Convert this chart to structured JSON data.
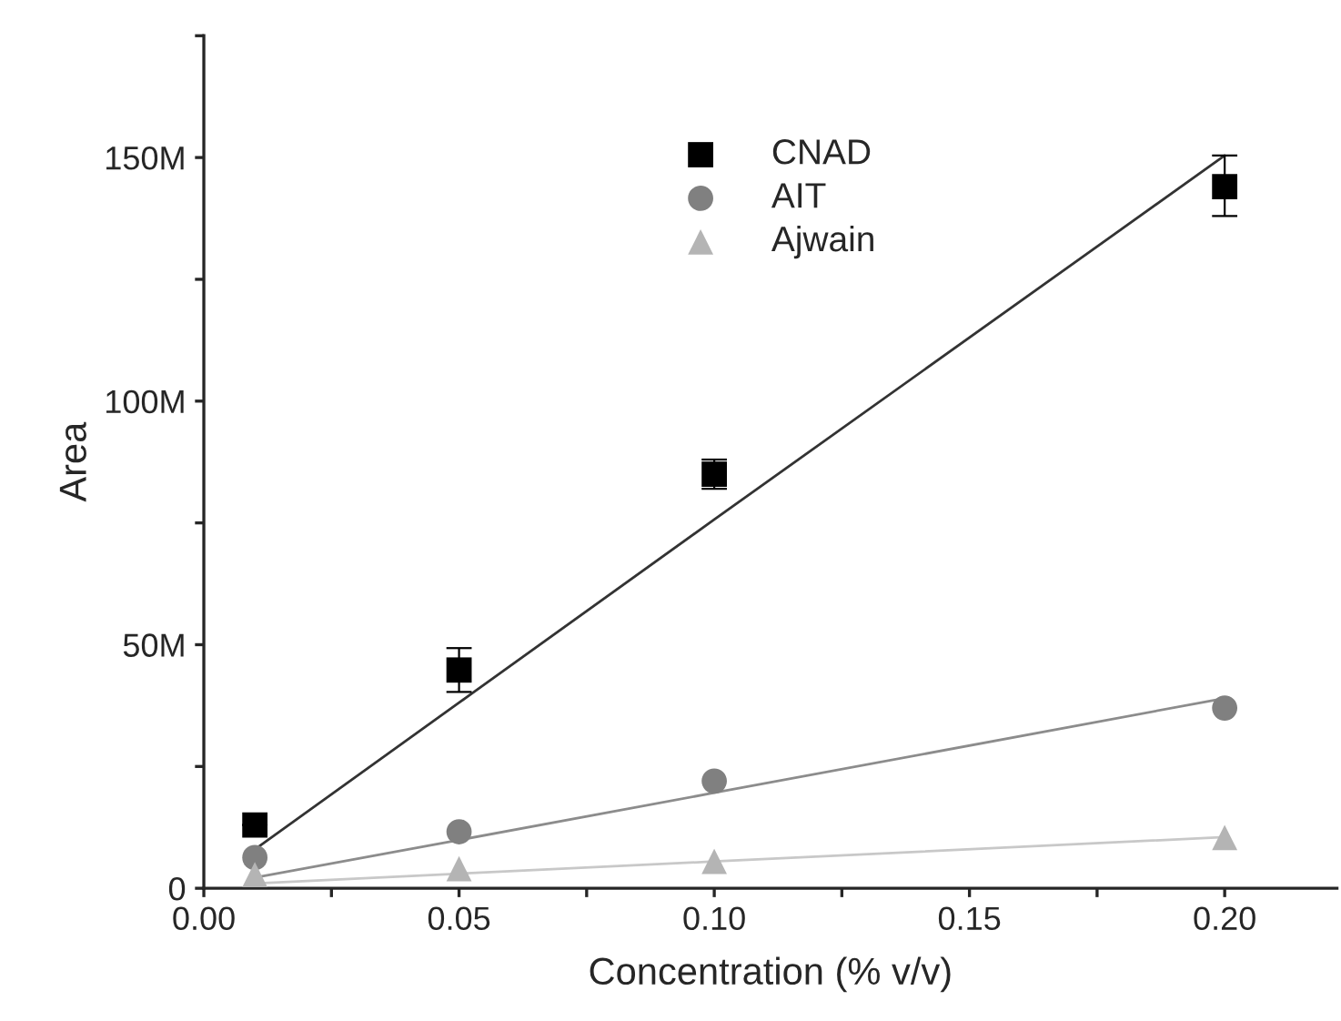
{
  "chart_data": {
    "type": "scatter",
    "xlabel": "Concentration (% v/v)",
    "ylabel": "Area",
    "x": [
      0.01,
      0.05,
      0.1,
      0.2
    ],
    "series": [
      {
        "name": "CNAD",
        "color": "#000000",
        "marker": "square",
        "values": [
          13000000,
          44800000,
          85000000,
          144000000
        ],
        "errors": [
          null,
          4500000,
          3000000,
          [
            138000000,
            150400000
          ]
        ]
      },
      {
        "name": "AIT",
        "color": "#808080",
        "marker": "circle",
        "values": [
          6300000,
          11600000,
          22000000,
          37000000
        ]
      },
      {
        "name": "Ajwain",
        "color": "#b4b4b4",
        "marker": "triangle",
        "values": [
          2800000,
          4000000,
          5500000,
          10400000
        ]
      },
      {
        "type": "line",
        "color": "#333333",
        "marker": "none",
        "values": [
          8000000,
          38100000,
          75700000,
          150400000
        ]
      },
      {
        "type": "line",
        "color": "#8c8c8c",
        "marker": "none",
        "values": [
          2200000,
          9900000,
          19600000,
          39000000
        ]
      },
      {
        "type": "line",
        "color": "#c8c8c8",
        "marker": "none",
        "values": [
          1000000,
          3000000,
          5500000,
          10500000
        ]
      }
    ],
    "xlim": [
      0,
      0.222
    ],
    "xticks": [
      {
        "value": 0,
        "label": "0.00"
      },
      {
        "value": 0.025,
        "label": null
      },
      {
        "value": 0.05,
        "label": "0.05"
      },
      {
        "value": 0.075,
        "label": null
      },
      {
        "value": 0.1,
        "label": "0.10"
      },
      {
        "value": 0.125,
        "label": null
      },
      {
        "value": 0.15,
        "label": "0.15"
      },
      {
        "value": 0.175,
        "label": null
      },
      {
        "value": 0.2,
        "label": "0.20"
      }
    ],
    "ylim": [
      0,
      175000000
    ],
    "yticks": [
      {
        "value": 0,
        "label": "0"
      },
      {
        "value": 25000000,
        "label": null
      },
      {
        "value": 50000000,
        "label": "50M"
      },
      {
        "value": 75000000,
        "label": null
      },
      {
        "value": 100000000,
        "label": "100M"
      },
      {
        "value": 125000000,
        "label": null
      },
      {
        "value": 150000000,
        "label": "150M"
      },
      {
        "value": 175000000,
        "label": null
      }
    ],
    "grid": false,
    "legend": "top"
  }
}
